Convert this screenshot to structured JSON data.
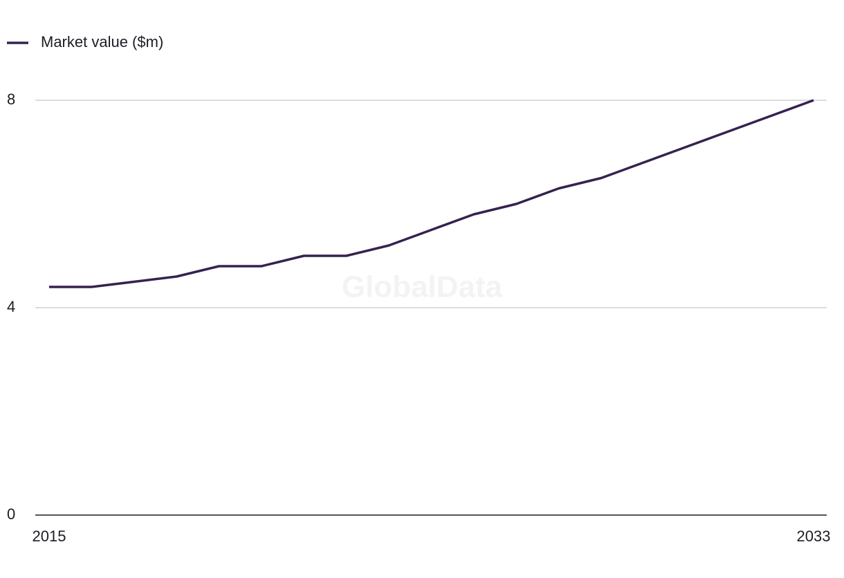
{
  "chart_data": {
    "type": "line",
    "watermark": "GlobalData",
    "x": [
      2015,
      2016,
      2017,
      2018,
      2019,
      2020,
      2021,
      2022,
      2023,
      2024,
      2025,
      2026,
      2027,
      2028,
      2029,
      2030,
      2031,
      2032,
      2033
    ],
    "series": [
      {
        "name": "Market value ($m)",
        "color": "#35224f",
        "values": [
          4.4,
          4.4,
          4.5,
          4.6,
          4.8,
          4.8,
          5.0,
          5.0,
          5.2,
          5.5,
          5.8,
          6.0,
          6.3,
          6.5,
          6.8,
          7.1,
          7.4,
          7.7,
          8.0
        ]
      }
    ],
    "xlim": [
      2015,
      2033
    ],
    "xticks": [
      2015,
      2033
    ],
    "ylim": [
      0,
      8
    ],
    "yticks": [
      0,
      4,
      8
    ],
    "grid": true,
    "legend": "top-left"
  }
}
